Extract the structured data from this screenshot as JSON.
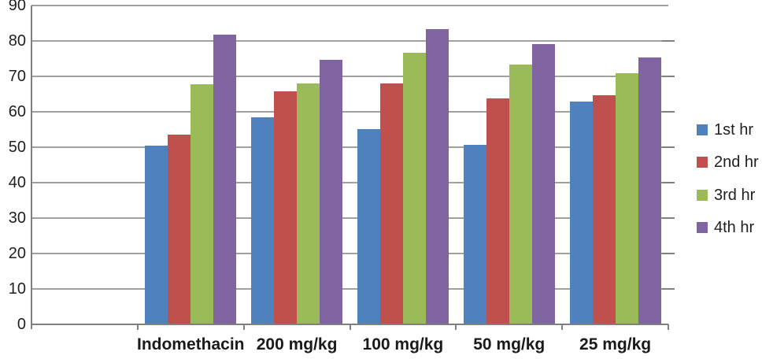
{
  "chart_data": {
    "type": "bar",
    "title": "",
    "xlabel": "",
    "ylabel": "",
    "categories": [
      "Indomethacin",
      "200 mg/kg",
      "100 mg/kg",
      "50 mg/kg",
      "25 mg/kg"
    ],
    "series": [
      {
        "name": "1st hr",
        "color": "#4f81bd",
        "values": [
          50.5,
          58.5,
          55.2,
          50.6,
          62.8
        ]
      },
      {
        "name": "2nd hr",
        "color": "#c0504d",
        "values": [
          53.6,
          65.8,
          67.9,
          63.8,
          64.6
        ]
      },
      {
        "name": "3rd hr",
        "color": "#9bbb59",
        "values": [
          67.7,
          68.0,
          76.6,
          73.4,
          70.8
        ]
      },
      {
        "name": "4th hr",
        "color": "#8064a2",
        "values": [
          81.7,
          74.7,
          83.4,
          79.1,
          75.3
        ]
      }
    ],
    "ylim": [
      0,
      90
    ],
    "ytick_step": 10,
    "ytick_labels": [
      "0",
      "10",
      "20",
      "30",
      "40",
      "50",
      "60",
      "70",
      "80",
      "90"
    ],
    "grid": true,
    "legend_position": "right",
    "legend_labels": [
      "1st hr",
      "2nd hr",
      "3rd hr",
      "4th hr"
    ]
  },
  "colors": {
    "background": "#ffffff",
    "gridline": "#a0a0a0",
    "axis": "#7f7f7f",
    "text": "#1f1f1f",
    "series_1st_hr": "#4f81bd",
    "series_2nd_hr": "#c0504d",
    "series_3rd_hr": "#9bbb59",
    "series_4th_hr": "#8064a2"
  }
}
